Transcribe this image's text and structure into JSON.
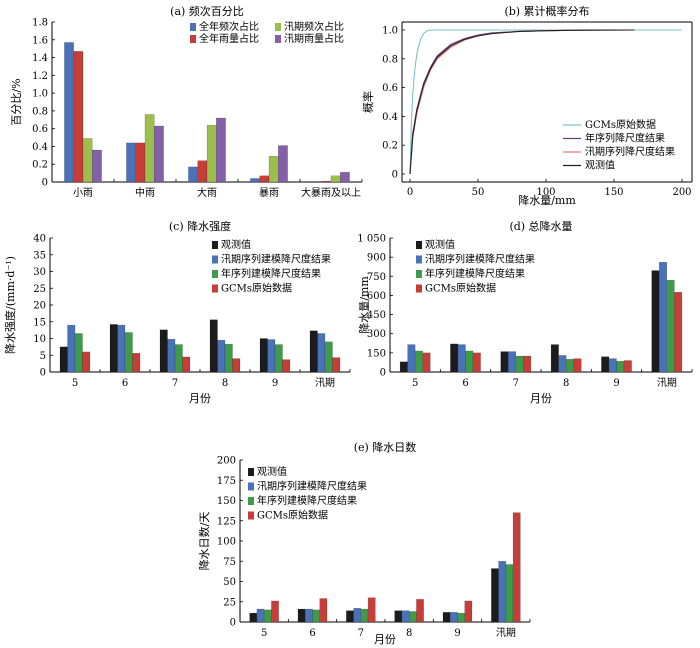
{
  "chart_data": [
    {
      "id": "a",
      "type": "bar",
      "title": "(a) 频次百分比",
      "xlabel": "",
      "ylabel": "百分比/%",
      "ylim": [
        0,
        1.8
      ],
      "yticks": [
        "0",
        "0.2",
        "0.4",
        "0.6",
        "0.8",
        "1.0",
        "1.2",
        "1.4",
        "1.6",
        "1.8"
      ],
      "grid": false,
      "legend_position": "top-right",
      "legend_columns": 2,
      "categories": [
        "小雨",
        "中雨",
        "大雨",
        "暴雨",
        "大暴雨及以上"
      ],
      "series": [
        {
          "name": "全年频次占比",
          "color": "#4a72b8",
          "values": [
            1.57,
            0.44,
            0.17,
            0.04,
            0.0
          ]
        },
        {
          "name": "全年雨量占比",
          "color": "#c63d3a",
          "values": [
            1.47,
            0.44,
            0.24,
            0.07,
            0.01
          ]
        },
        {
          "name": "汛期频次占比",
          "color": "#9bbf4a",
          "values": [
            0.49,
            0.76,
            0.64,
            0.29,
            0.07
          ]
        },
        {
          "name": "汛期雨量占比",
          "color": "#8460a8",
          "values": [
            0.36,
            0.63,
            0.72,
            0.41,
            0.11
          ]
        }
      ]
    },
    {
      "id": "b",
      "type": "line",
      "title": "(b) 累计概率分布",
      "xlabel": "降水量/mm",
      "ylabel": "概率",
      "xlim": [
        0,
        200
      ],
      "ylim": [
        0,
        1.0
      ],
      "xticks": [
        "0",
        "50",
        "100",
        "150",
        "200"
      ],
      "yticks": [
        "0",
        "0.2",
        "0.4",
        "0.6",
        "0.8",
        "1.0"
      ],
      "grid": false,
      "legend_position": "bottom-right",
      "series": [
        {
          "name": "GCMs原始数据",
          "color": "#7fc3c8",
          "x": [
            0,
            1,
            2,
            3,
            4,
            5,
            6,
            8,
            10,
            12,
            14,
            20,
            200
          ],
          "y": [
            0,
            0.35,
            0.55,
            0.67,
            0.76,
            0.83,
            0.88,
            0.94,
            0.975,
            0.99,
            0.998,
            1.0,
            1.0
          ]
        },
        {
          "name": "年序列降尺度结果",
          "color": "#6b3f7a",
          "x": [
            0,
            2,
            5,
            10,
            15,
            20,
            30,
            40,
            50,
            60,
            80,
            100,
            120,
            165
          ],
          "y": [
            0,
            0.28,
            0.45,
            0.63,
            0.74,
            0.82,
            0.9,
            0.94,
            0.965,
            0.98,
            0.99,
            0.995,
            0.998,
            1.0
          ]
        },
        {
          "name": "汛期序列降尺度结果",
          "color": "#e07a7a",
          "x": [
            0,
            2,
            5,
            10,
            15,
            20,
            30,
            40,
            50,
            60,
            80,
            100,
            120
          ],
          "y": [
            0,
            0.25,
            0.42,
            0.6,
            0.72,
            0.8,
            0.88,
            0.93,
            0.96,
            0.975,
            0.99,
            0.995,
            1.0
          ]
        },
        {
          "name": "观测值",
          "color": "#222222",
          "x": [
            0,
            2,
            5,
            10,
            15,
            20,
            30,
            40,
            50,
            60,
            80,
            100,
            130,
            165
          ],
          "y": [
            0,
            0.26,
            0.44,
            0.62,
            0.73,
            0.81,
            0.89,
            0.935,
            0.96,
            0.975,
            0.99,
            0.995,
            0.999,
            1.0
          ]
        }
      ]
    },
    {
      "id": "c",
      "type": "bar",
      "title": "(c) 降水强度",
      "xlabel": "月份",
      "ylabel": "降水强度/(mm·d⁻¹)",
      "ylim": [
        0,
        40
      ],
      "yticks": [
        "0",
        "5",
        "10",
        "15",
        "20",
        "25",
        "30",
        "35",
        "40"
      ],
      "grid": false,
      "legend_position": "top-right",
      "categories": [
        "5",
        "6",
        "7",
        "8",
        "9",
        "汛期"
      ],
      "series": [
        {
          "name": "观测值",
          "color": "#1c1c1c",
          "values": [
            7.5,
            14.2,
            12.6,
            15.6,
            10.0,
            12.3
          ]
        },
        {
          "name": "汛期序列建模降尺度结果",
          "color": "#4a72b8",
          "values": [
            14.0,
            14.0,
            9.8,
            9.5,
            9.7,
            11.5
          ]
        },
        {
          "name": "年序列建模降尺度结果",
          "color": "#3f9b4a",
          "values": [
            11.5,
            11.8,
            8.2,
            8.3,
            8.2,
            9.0
          ]
        },
        {
          "name": "GCMs原始数据",
          "color": "#c63d3a",
          "values": [
            6.0,
            5.6,
            4.5,
            4.0,
            3.7,
            4.3
          ]
        }
      ]
    },
    {
      "id": "d",
      "type": "bar",
      "title": "(d) 总降水量",
      "xlabel": "月份",
      "ylabel": "降水量/mm",
      "ylim": [
        0,
        1050
      ],
      "yticks": [
        "0",
        "150",
        "300",
        "450",
        "600",
        "750",
        "900",
        "1 050"
      ],
      "grid": false,
      "legend_position": "top-right",
      "categories": [
        "5",
        "6",
        "7",
        "8",
        "9",
        "汛期"
      ],
      "series": [
        {
          "name": "观测值",
          "color": "#1c1c1c",
          "values": [
            80,
            220,
            160,
            215,
            120,
            795
          ]
        },
        {
          "name": "汛期序列建模降尺度结果",
          "color": "#4a72b8",
          "values": [
            215,
            215,
            160,
            130,
            105,
            860
          ]
        },
        {
          "name": "年序列建模降尺度结果",
          "color": "#3f9b4a",
          "values": [
            165,
            165,
            125,
            100,
            85,
            720
          ]
        },
        {
          "name": "GCMs原始数据",
          "color": "#c63d3a",
          "values": [
            150,
            150,
            125,
            105,
            90,
            625
          ]
        }
      ]
    },
    {
      "id": "e",
      "type": "bar",
      "title": "(e) 降水日数",
      "xlabel": "月份",
      "ylabel": "降水日数/天",
      "ylim": [
        0,
        200
      ],
      "yticks": [
        "0",
        "25",
        "50",
        "75",
        "100",
        "125",
        "150",
        "175",
        "200"
      ],
      "grid": false,
      "legend_position": "top-left",
      "categories": [
        "5",
        "6",
        "7",
        "8",
        "9",
        "汛期"
      ],
      "series": [
        {
          "name": "观测值",
          "color": "#1c1c1c",
          "values": [
            11,
            16,
            14,
            14,
            12,
            66
          ]
        },
        {
          "name": "汛期序列建模降尺度结果",
          "color": "#4a72b8",
          "values": [
            16,
            16,
            17,
            14,
            12,
            75
          ]
        },
        {
          "name": "年序列建模降尺度结果",
          "color": "#3f9b4a",
          "values": [
            15,
            15,
            16,
            13,
            11,
            71
          ]
        },
        {
          "name": "GCMs原始数据",
          "color": "#c63d3a",
          "values": [
            26,
            29,
            30,
            28,
            26,
            135
          ]
        }
      ]
    }
  ]
}
